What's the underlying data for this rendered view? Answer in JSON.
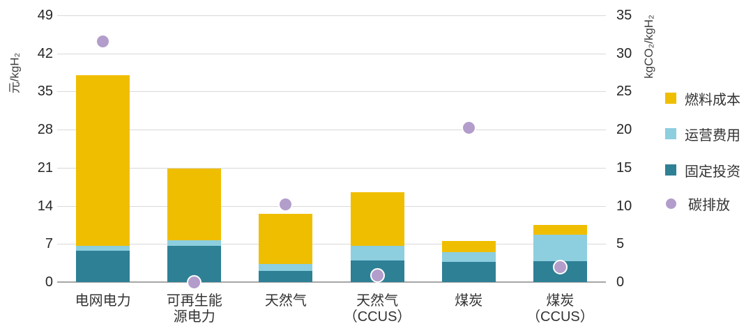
{
  "chart_data": {
    "type": "bar",
    "subtype": "stacked-bars-with-scatter-overlay",
    "title": "",
    "categories": [
      "电网电力",
      "可再生能源电力",
      "天然气",
      "天然气（CCUS）",
      "煤炭",
      "煤炭（CCUS）"
    ],
    "category_display_lines": [
      [
        "电网电力"
      ],
      [
        "可再生能",
        "源电力"
      ],
      [
        "天然气"
      ],
      [
        "天然气",
        "（CCUS）"
      ],
      [
        "煤炭"
      ],
      [
        "煤炭",
        "（CCUS）"
      ]
    ],
    "left_axis": {
      "label": "元/kgH₂",
      "min": 0,
      "max": 49,
      "ticks": [
        0,
        7,
        14,
        21,
        28,
        35,
        42,
        49
      ]
    },
    "right_axis": {
      "label": "kgCO₂/kgH₂",
      "min": 0,
      "max": 35,
      "ticks": [
        0,
        5,
        10,
        15,
        20,
        25,
        30,
        35
      ]
    },
    "series": [
      {
        "name": "固定投资",
        "role": "bar-segment",
        "stack_order": 1,
        "color": "#2E8095",
        "values": [
          5.8,
          6.7,
          2.0,
          4.0,
          3.7,
          3.8
        ]
      },
      {
        "name": "运营费用",
        "role": "bar-segment",
        "stack_order": 2,
        "color": "#8DCEDF",
        "values": [
          0.9,
          1.0,
          1.3,
          2.6,
          1.8,
          4.9
        ]
      },
      {
        "name": "燃料成本",
        "role": "bar-segment",
        "stack_order": 3,
        "color": "#F0BE00",
        "values": [
          31.3,
          13.1,
          9.2,
          9.9,
          2.0,
          1.8
        ]
      },
      {
        "name": "碳排放",
        "role": "scatter",
        "axis": "right",
        "color": "#B29DCB",
        "marker_border": "#FFFFFF",
        "values": [
          31.6,
          0,
          10.2,
          0.9,
          20.2,
          2.0
        ]
      }
    ],
    "bar_totals": [
      38.0,
      20.8,
      12.5,
      16.5,
      7.5,
      10.5
    ],
    "legend": {
      "position": "right",
      "items": [
        {
          "label": "燃料成本",
          "swatch": "square",
          "color": "#F0BE00"
        },
        {
          "label": "运营费用",
          "swatch": "square",
          "color": "#8DCEDF"
        },
        {
          "label": "固定投资",
          "swatch": "square",
          "color": "#2E8095"
        },
        {
          "label": "碳排放",
          "swatch": "circle",
          "color": "#B29DCB"
        }
      ]
    },
    "grid": {
      "show": true,
      "color": "#D9D9D9",
      "baseline_color": "#A6A6A6"
    }
  }
}
